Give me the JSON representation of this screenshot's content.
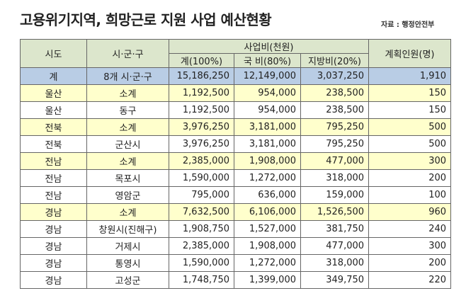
{
  "header": {
    "title": "고용위기지역, 희망근로 지원 사업 예산현황",
    "source": "자료 : 행정안전부"
  },
  "table": {
    "columns": {
      "region": "시도",
      "district": "시·군·구",
      "budget": "사업비(천원)",
      "total": "계(100%)",
      "national": "국 비(80%)",
      "local": "지방비(20%)",
      "people": "계획인원(명)"
    },
    "rows": [
      [
        "계",
        "8개 시·군·구",
        "15,186,250",
        "12,149,000",
        "3,037,250",
        "1,910"
      ],
      [
        "울산",
        "소계",
        "1,192,500",
        "954,000",
        "238,500",
        "150"
      ],
      [
        "울산",
        "동구",
        "1,192,500",
        "954,000",
        "238,500",
        "150"
      ],
      [
        "전북",
        "소계",
        "3,976,250",
        "3,181,000",
        "795,250",
        "500"
      ],
      [
        "전북",
        "군산시",
        "3,976,250",
        "3,181,000",
        "795,250",
        "500"
      ],
      [
        "전남",
        "소계",
        "2,385,000",
        "1,908,000",
        "477,000",
        "300"
      ],
      [
        "전남",
        "목포시",
        "1,590,000",
        "1,272,000",
        "318,000",
        "200"
      ],
      [
        "전남",
        "영암군",
        "795,000",
        "636,000",
        "159,000",
        "100"
      ],
      [
        "경남",
        "소계",
        "7,632,500",
        "6,106,000",
        "1,526,500",
        "960"
      ],
      [
        "경남",
        "창원시(진해구)",
        "1,908,750",
        "1,527,000",
        "381,750",
        "240"
      ],
      [
        "경남",
        "거제시",
        "2,385,000",
        "1,908,000",
        "477,000",
        "300"
      ],
      [
        "경남",
        "통영시",
        "1,590,000",
        "1,272,000",
        "318,000",
        "200"
      ],
      [
        "경남",
        "고성군",
        "1,748,750",
        "1,399,000",
        "349,750",
        "220"
      ]
    ]
  }
}
